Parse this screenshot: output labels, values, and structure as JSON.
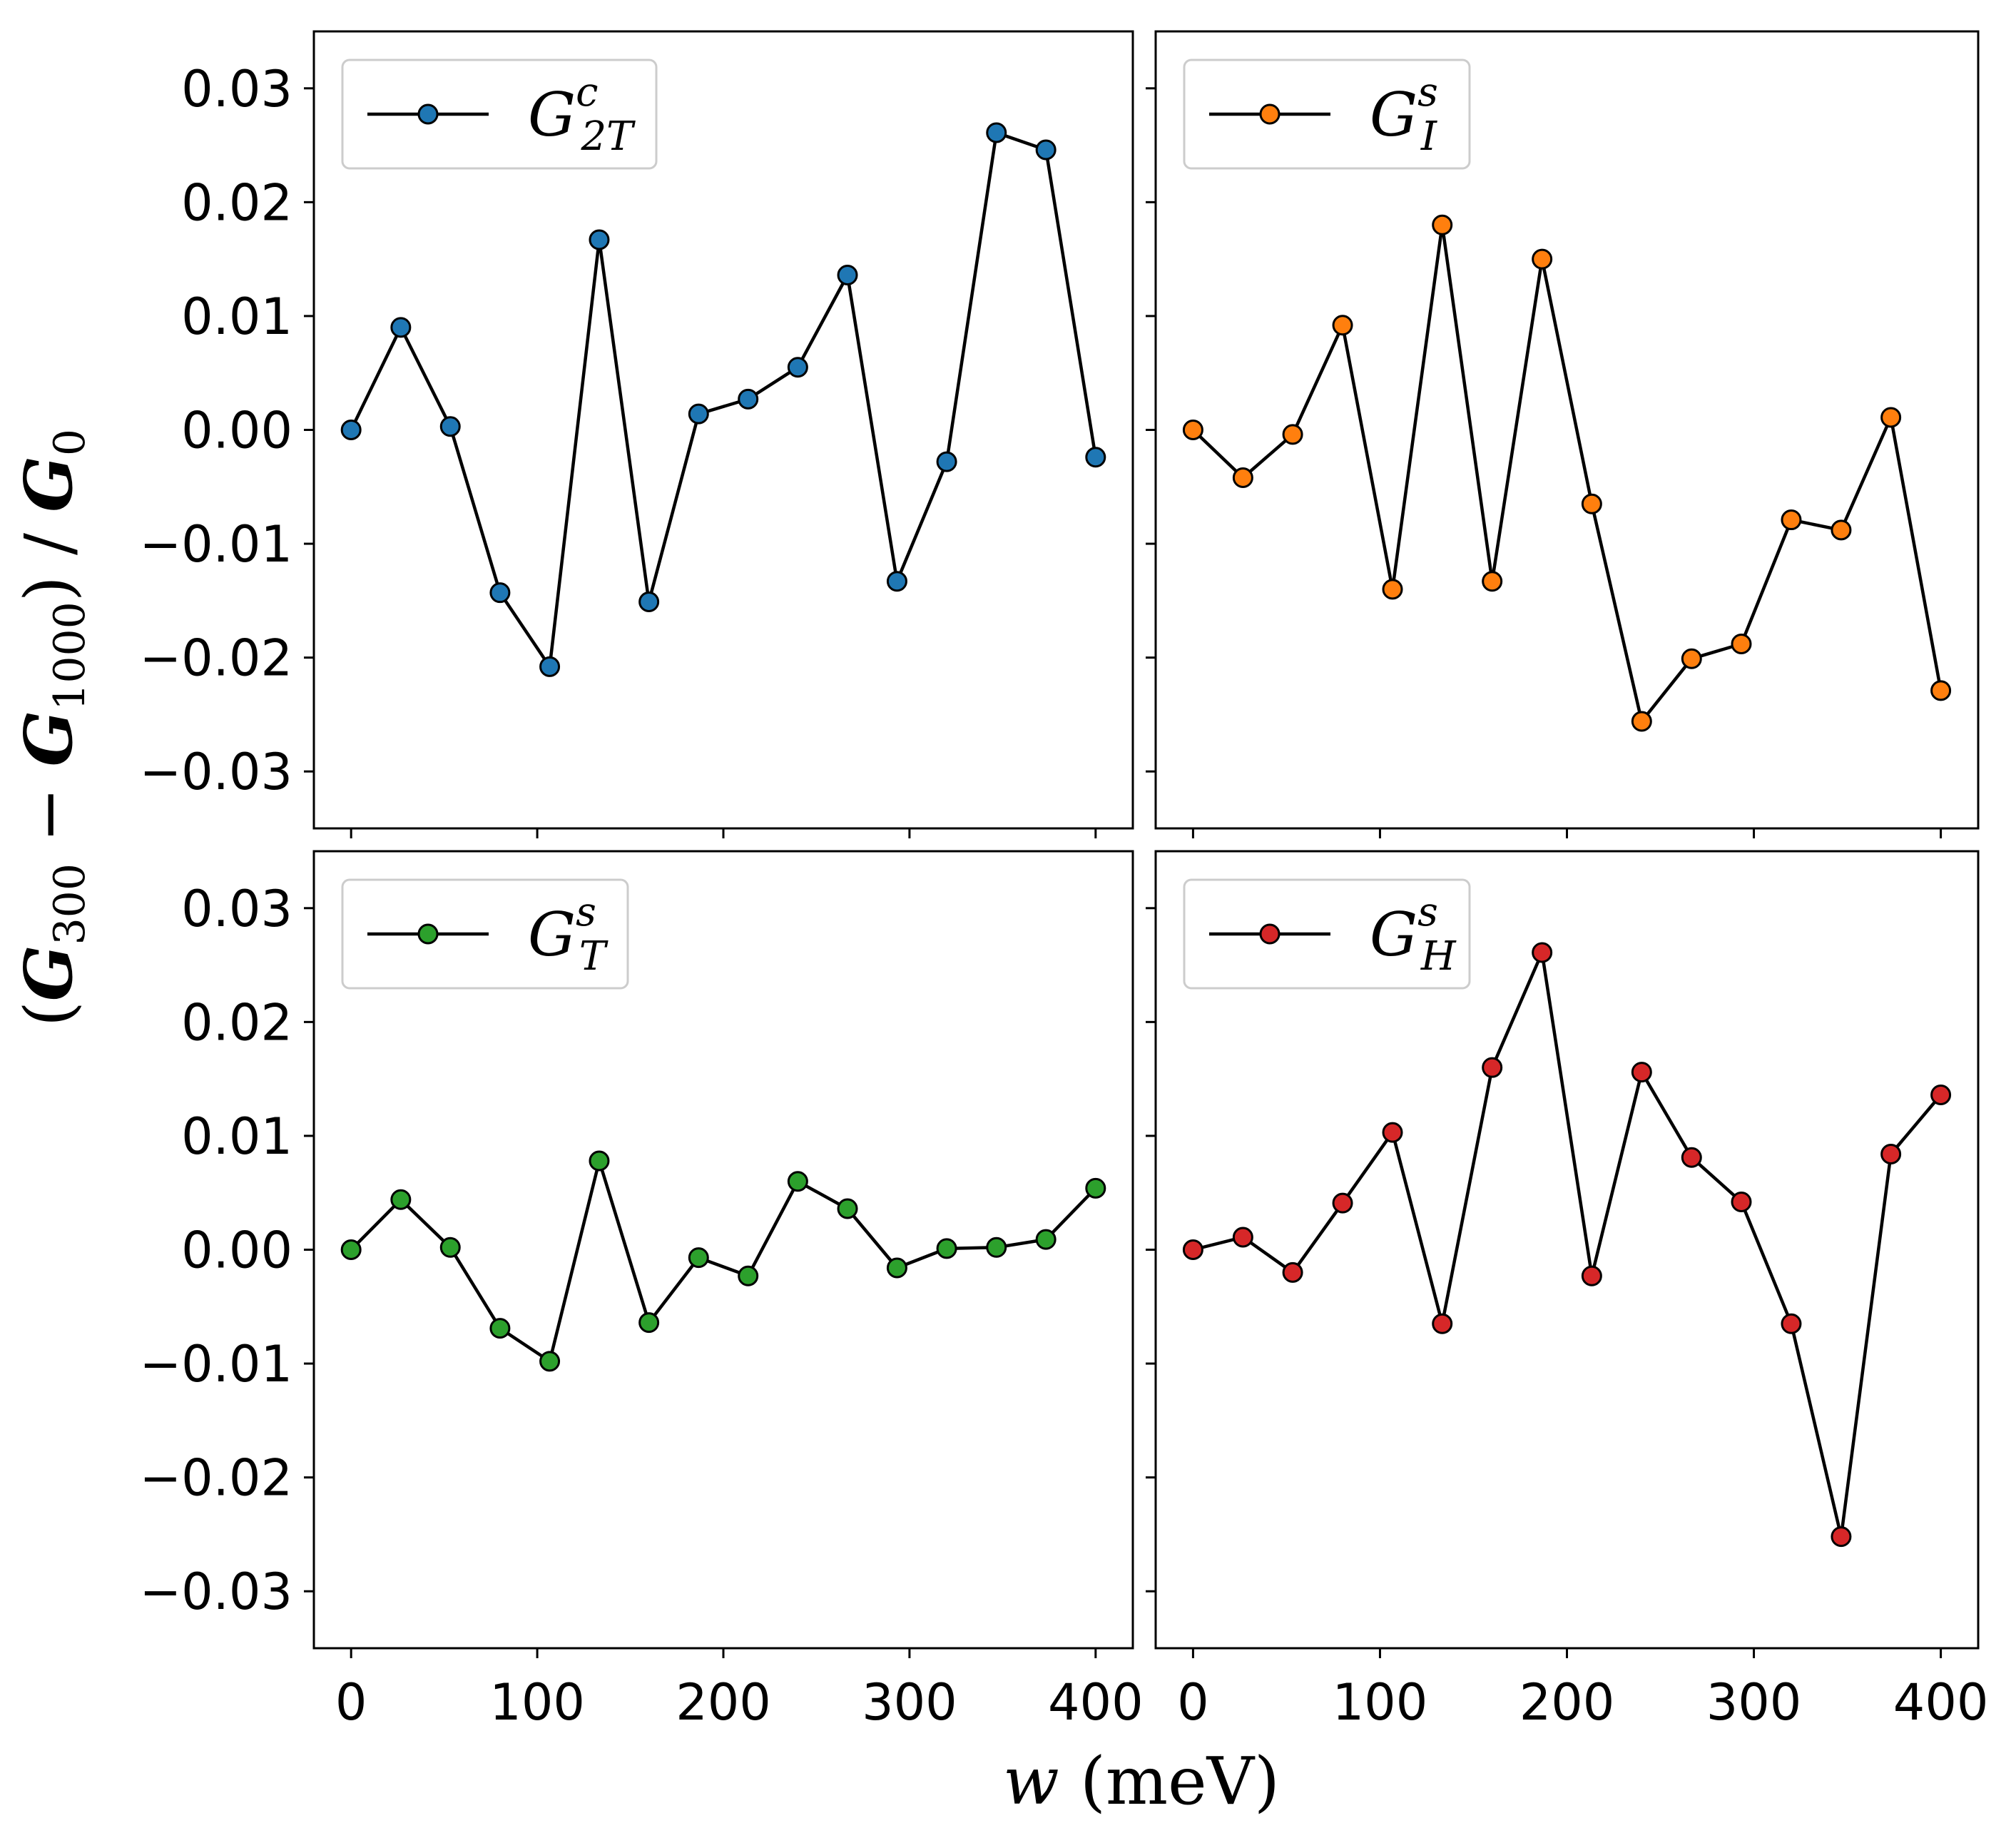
{
  "figure": {
    "ylabel": {
      "open": "(",
      "g1": "G",
      "s1": "300",
      "minus": " − ",
      "g2": "G",
      "s2": "1000",
      "close": ") / ",
      "g3": "G",
      "s3": "0"
    },
    "xlabel": {
      "var": "w",
      "unit": " (meV)"
    }
  },
  "chart_data": [
    {
      "type": "line",
      "legend": {
        "base": "G",
        "sup": "c",
        "sub": "2T"
      },
      "color": "#1f77b4",
      "x": [
        0,
        26.7,
        53.3,
        80,
        106.7,
        133.3,
        160,
        186.7,
        213.3,
        240,
        266.7,
        293.3,
        320,
        346.7,
        373.3,
        400
      ],
      "y": [
        0.0,
        0.009,
        0.0003,
        -0.0143,
        -0.0208,
        0.0167,
        -0.0151,
        0.0014,
        0.0027,
        0.0055,
        0.0136,
        -0.0133,
        -0.0028,
        0.0261,
        0.0246,
        -0.0024
      ],
      "xlim": [
        -20,
        420
      ],
      "ylim": [
        -0.035,
        0.035
      ],
      "xticks": [
        "0",
        "100",
        "200",
        "300",
        "400"
      ],
      "yticks": [
        "0.03",
        "0.02",
        "0.01",
        "0.00",
        "−0.01",
        "−0.02",
        "−0.03"
      ],
      "legend_position": "top-left"
    },
    {
      "type": "line",
      "legend": {
        "base": "G",
        "sup": "s",
        "sub": "I"
      },
      "color": "#ff7f0e",
      "x": [
        0,
        26.7,
        53.3,
        80,
        106.7,
        133.3,
        160,
        186.7,
        213.3,
        240,
        266.7,
        293.3,
        320,
        346.7,
        373.3,
        400
      ],
      "y": [
        0.0,
        -0.0042,
        -0.0004,
        0.0092,
        -0.014,
        0.018,
        -0.0133,
        0.015,
        -0.0065,
        -0.0256,
        -0.0201,
        -0.0188,
        -0.0079,
        -0.0088,
        0.0011,
        -0.0229
      ],
      "xlim": [
        -20,
        420
      ],
      "ylim": [
        -0.035,
        0.035
      ],
      "xticks": [
        "0",
        "100",
        "200",
        "300",
        "400"
      ],
      "legend_position": "top-left"
    },
    {
      "type": "line",
      "legend": {
        "base": "G",
        "sup": "s",
        "sub": "T"
      },
      "color": "#2ca02c",
      "x": [
        0,
        26.7,
        53.3,
        80,
        106.7,
        133.3,
        160,
        186.7,
        213.3,
        240,
        266.7,
        293.3,
        320,
        346.7,
        373.3,
        400
      ],
      "y": [
        0.0,
        0.0044,
        0.0002,
        -0.0069,
        -0.0098,
        0.0078,
        -0.0064,
        -0.0007,
        -0.0023,
        0.006,
        0.0036,
        -0.0016,
        0.0001,
        0.0002,
        0.0009,
        0.0054
      ],
      "xlim": [
        -20,
        420
      ],
      "ylim": [
        -0.035,
        0.035
      ],
      "xticks": [
        "0",
        "100",
        "200",
        "300",
        "400"
      ],
      "yticks": [
        "0.03",
        "0.02",
        "0.01",
        "0.00",
        "−0.01",
        "−0.02",
        "−0.03"
      ],
      "legend_position": "top-left"
    },
    {
      "type": "line",
      "legend": {
        "base": "G",
        "sup": "s",
        "sub": "H"
      },
      "color": "#d62728",
      "x": [
        0,
        26.7,
        53.3,
        80,
        106.7,
        133.3,
        160,
        186.7,
        213.3,
        240,
        266.7,
        293.3,
        320,
        346.7,
        373.3,
        400
      ],
      "y": [
        0.0,
        0.0011,
        -0.002,
        0.0041,
        0.0103,
        -0.0065,
        0.016,
        0.0261,
        -0.0023,
        0.0156,
        0.0081,
        0.0042,
        -0.0065,
        -0.0252,
        0.0084,
        0.0136
      ],
      "xlim": [
        -20,
        420
      ],
      "ylim": [
        -0.035,
        0.035
      ],
      "xticks": [
        "0",
        "100",
        "200",
        "300",
        "400"
      ],
      "legend_position": "top-left"
    }
  ]
}
